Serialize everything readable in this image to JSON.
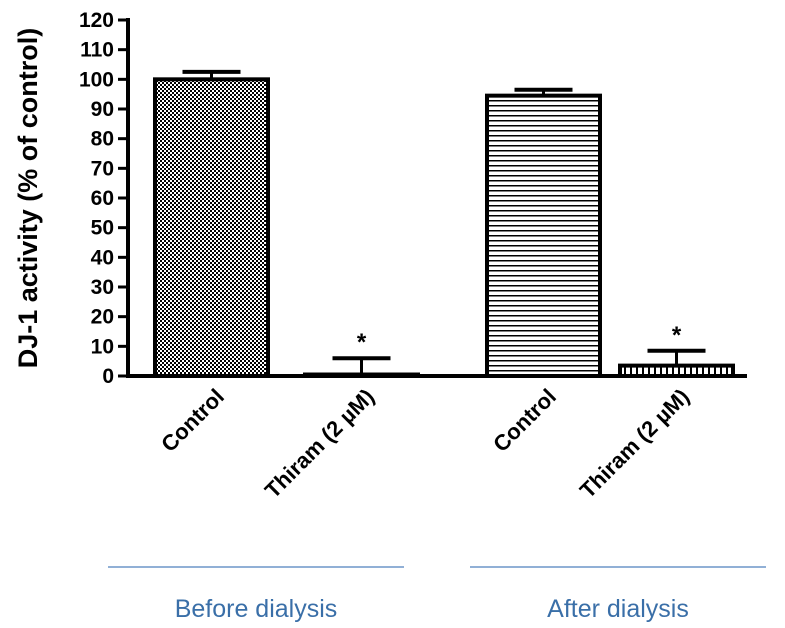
{
  "chart_data": {
    "type": "bar",
    "ylabel": "DJ-1 activity (% of control)",
    "ylim": [
      0,
      120
    ],
    "yticks": [
      0,
      10,
      20,
      30,
      40,
      50,
      60,
      70,
      80,
      90,
      100,
      110,
      120
    ],
    "categories": [
      "Control",
      "Thiram (2 µM)",
      "Control",
      "Thiram (2 µM)"
    ],
    "values": [
      100,
      0.5,
      94.5,
      3.5
    ],
    "errors": [
      2.5,
      5.5,
      2,
      5
    ],
    "significance": [
      "",
      "*",
      "",
      "*"
    ],
    "patterns": [
      "checker",
      "checker",
      "horizontal-lines",
      "vertical-dashes"
    ],
    "groups": [
      {
        "label": "Before dialysis",
        "bars": [
          0,
          1
        ]
      },
      {
        "label": "After dialysis",
        "bars": [
          2,
          3
        ]
      }
    ],
    "colors": {
      "bar_stroke": "#000000",
      "group_line": "#4f81bd",
      "group_text": "#3a6fa8"
    }
  }
}
